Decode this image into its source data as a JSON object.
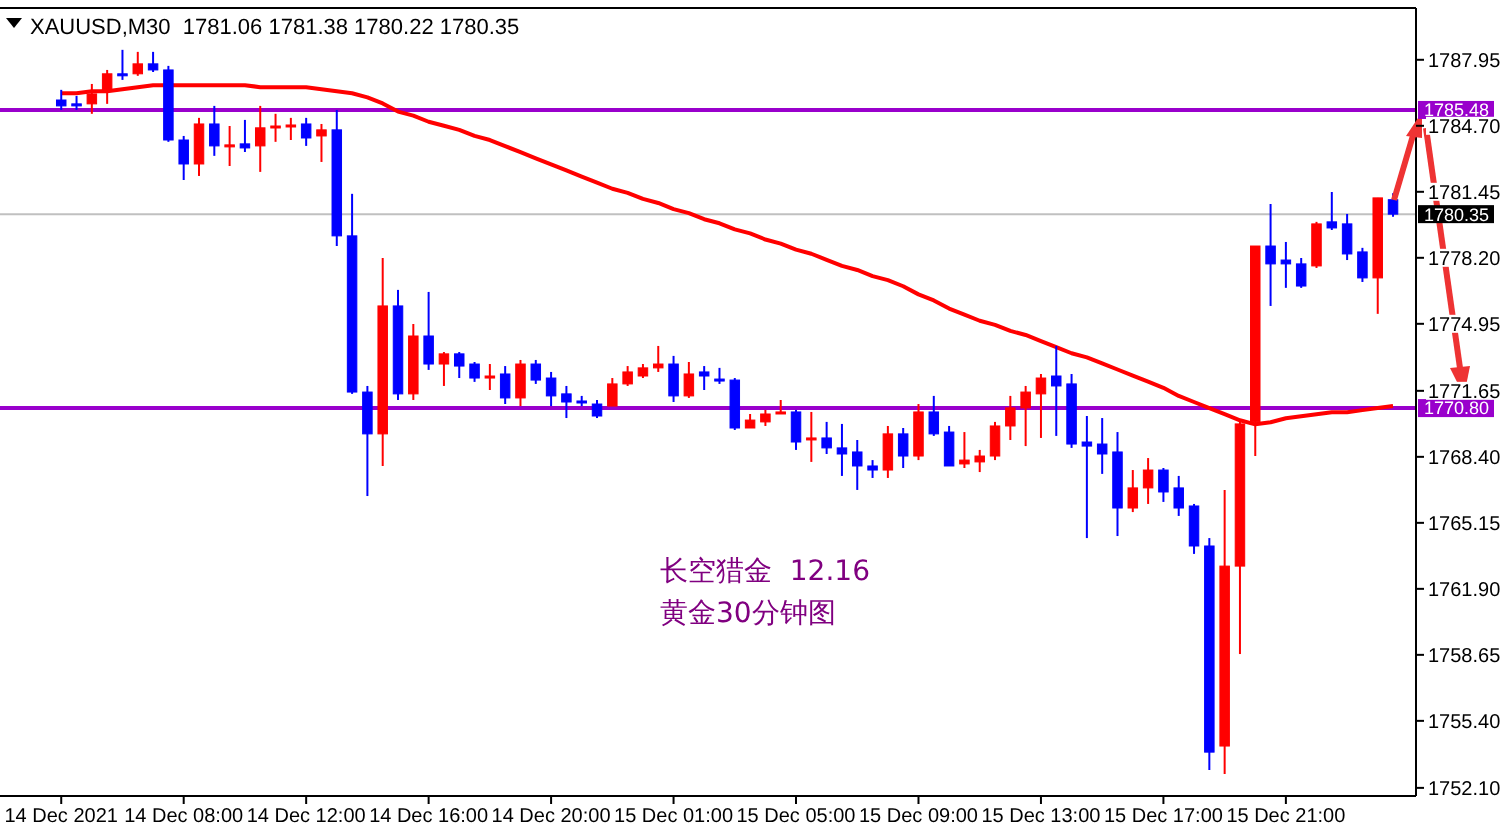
{
  "chart_data": {
    "type": "candlestick",
    "title": "XAUUSD,M30  1781.06 1781.38 1780.22 1780.35",
    "categories": [
      "14 Dec 2021",
      null,
      null,
      null,
      null,
      null,
      null,
      null,
      "14 Dec 08:00",
      null,
      null,
      null,
      null,
      null,
      null,
      null,
      "14 Dec 12:00",
      null,
      null,
      null,
      null,
      null,
      null,
      null,
      "14 Dec 16:00",
      null,
      null,
      null,
      null,
      null,
      null,
      null,
      "14 Dec 20:00",
      null,
      null,
      null,
      null,
      null,
      null,
      null,
      "15 Dec 01:00",
      null,
      null,
      null,
      null,
      null,
      null,
      null,
      "15 Dec 05:00",
      null,
      null,
      null,
      null,
      null,
      null,
      null,
      "15 Dec 09:00",
      null,
      null,
      null,
      null,
      null,
      null,
      null,
      "15 Dec 13:00",
      null,
      null,
      null,
      null,
      null,
      null,
      null,
      "15 Dec 17:00",
      null,
      null,
      null,
      null,
      null,
      null,
      null,
      "15 Dec 21:00",
      null,
      null,
      null,
      null,
      null,
      null,
      null
    ],
    "ohlc": [
      [
        1785.97,
        1786.47,
        1785.48,
        1785.68
      ],
      [
        1785.78,
        1786.17,
        1785.48,
        1785.68
      ],
      [
        1785.78,
        1786.76,
        1785.29,
        1786.27
      ],
      [
        1786.47,
        1787.45,
        1785.78,
        1787.26
      ],
      [
        1787.26,
        1788.44,
        1786.96,
        1787.21
      ],
      [
        1787.26,
        1788.34,
        1787.16,
        1787.75
      ],
      [
        1787.75,
        1788.34,
        1787.35,
        1787.45
      ],
      [
        1787.45,
        1787.65,
        1783.91,
        1784.0
      ],
      [
        1784.0,
        1784.2,
        1782.03,
        1782.82
      ],
      [
        1782.82,
        1785.09,
        1782.23,
        1784.79
      ],
      [
        1784.79,
        1785.68,
        1783.22,
        1783.71
      ],
      [
        1783.71,
        1784.69,
        1782.72,
        1783.76
      ],
      [
        1783.81,
        1784.99,
        1783.41,
        1783.61
      ],
      [
        1783.71,
        1785.68,
        1782.43,
        1784.6
      ],
      [
        1784.6,
        1785.29,
        1783.91,
        1784.69
      ],
      [
        1784.65,
        1785.09,
        1784.0,
        1784.74
      ],
      [
        1784.79,
        1785.09,
        1783.71,
        1784.1
      ],
      [
        1784.2,
        1784.79,
        1782.92,
        1784.5
      ],
      [
        1784.5,
        1785.48,
        1778.78,
        1779.28
      ],
      [
        1779.28,
        1781.35,
        1771.5,
        1771.59
      ],
      [
        1771.59,
        1771.89,
        1766.47,
        1769.53
      ],
      [
        1769.53,
        1778.19,
        1767.95,
        1775.83
      ],
      [
        1775.83,
        1776.62,
        1771.2,
        1771.5
      ],
      [
        1771.5,
        1774.94,
        1771.2,
        1774.35
      ],
      [
        1774.35,
        1776.52,
        1772.68,
        1772.97
      ],
      [
        1772.97,
        1773.56,
        1771.89,
        1773.47
      ],
      [
        1773.47,
        1773.56,
        1772.28,
        1772.87
      ],
      [
        1772.97,
        1773.07,
        1772.09,
        1772.28
      ],
      [
        1772.28,
        1772.97,
        1771.69,
        1772.38
      ],
      [
        1772.48,
        1772.87,
        1771.0,
        1771.3
      ],
      [
        1771.3,
        1773.17,
        1770.9,
        1772.97
      ],
      [
        1772.97,
        1773.17,
        1771.99,
        1772.18
      ],
      [
        1772.28,
        1772.58,
        1770.9,
        1771.4
      ],
      [
        1771.5,
        1771.89,
        1770.31,
        1771.1
      ],
      [
        1771.15,
        1771.4,
        1770.9,
        1771.1
      ],
      [
        1771.0,
        1771.2,
        1770.31,
        1770.41
      ],
      [
        1770.9,
        1772.28,
        1770.9,
        1771.99
      ],
      [
        1771.99,
        1772.87,
        1771.89,
        1772.58
      ],
      [
        1772.38,
        1772.97,
        1772.28,
        1772.78
      ],
      [
        1772.78,
        1773.86,
        1772.58,
        1772.97
      ],
      [
        1772.97,
        1773.37,
        1771.1,
        1771.4
      ],
      [
        1771.4,
        1773.07,
        1771.3,
        1772.48
      ],
      [
        1772.58,
        1772.87,
        1771.69,
        1772.38
      ],
      [
        1772.23,
        1772.78,
        1771.99,
        1772.18
      ],
      [
        1772.18,
        1772.28,
        1769.72,
        1769.82
      ],
      [
        1769.82,
        1770.51,
        1769.82,
        1770.21
      ],
      [
        1770.12,
        1770.71,
        1769.92,
        1770.51
      ],
      [
        1770.51,
        1771.2,
        1770.51,
        1770.61
      ],
      [
        1770.61,
        1770.71,
        1768.74,
        1769.13
      ],
      [
        1769.28,
        1770.61,
        1768.15,
        1769.33
      ],
      [
        1769.33,
        1770.12,
        1768.54,
        1768.84
      ],
      [
        1768.84,
        1770.02,
        1767.46,
        1768.54
      ],
      [
        1768.64,
        1769.23,
        1766.77,
        1767.95
      ],
      [
        1767.95,
        1768.24,
        1767.36,
        1767.75
      ],
      [
        1767.75,
        1769.92,
        1767.36,
        1769.53
      ],
      [
        1769.53,
        1769.82,
        1767.85,
        1768.44
      ],
      [
        1768.44,
        1771.0,
        1768.24,
        1770.61
      ],
      [
        1770.61,
        1771.4,
        1769.43,
        1769.53
      ],
      [
        1769.62,
        1769.92,
        1767.95,
        1767.95
      ],
      [
        1768.05,
        1769.62,
        1767.85,
        1768.24
      ],
      [
        1768.15,
        1768.74,
        1767.65,
        1768.44
      ],
      [
        1768.44,
        1770.12,
        1768.24,
        1769.92
      ],
      [
        1769.92,
        1771.4,
        1769.23,
        1770.81
      ],
      [
        1770.81,
        1771.89,
        1768.93,
        1771.59
      ],
      [
        1771.5,
        1772.48,
        1769.33,
        1772.28
      ],
      [
        1772.38,
        1773.86,
        1769.43,
        1771.89
      ],
      [
        1771.99,
        1772.48,
        1768.84,
        1769.03
      ],
      [
        1769.13,
        1770.41,
        1764.4,
        1768.93
      ],
      [
        1769.03,
        1770.31,
        1767.56,
        1768.54
      ],
      [
        1768.64,
        1769.62,
        1764.5,
        1765.88
      ],
      [
        1765.88,
        1767.75,
        1765.68,
        1766.87
      ],
      [
        1766.87,
        1768.34,
        1766.08,
        1767.75
      ],
      [
        1767.75,
        1767.85,
        1766.18,
        1766.67
      ],
      [
        1766.87,
        1767.46,
        1765.49,
        1765.88
      ],
      [
        1765.98,
        1766.08,
        1763.62,
        1764.01
      ],
      [
        1764.01,
        1764.4,
        1752.98,
        1753.86
      ],
      [
        1754.16,
        1766.77,
        1752.78,
        1763.02
      ],
      [
        1763.02,
        1770.21,
        1758.69,
        1770.02
      ],
      [
        1770.12,
        1778.78,
        1768.44,
        1778.78
      ],
      [
        1778.78,
        1780.85,
        1775.83,
        1777.9
      ],
      [
        1778.09,
        1778.98,
        1776.72,
        1777.9
      ],
      [
        1777.9,
        1778.19,
        1776.72,
        1776.81
      ],
      [
        1777.8,
        1779.97,
        1777.7,
        1779.87
      ],
      [
        1779.97,
        1781.44,
        1779.57,
        1779.67
      ],
      [
        1779.87,
        1780.36,
        1778.09,
        1778.39
      ],
      [
        1778.49,
        1778.69,
        1777.01,
        1777.21
      ],
      [
        1777.21,
        1781.15,
        1775.44,
        1781.15
      ],
      [
        1781.06,
        1781.38,
        1780.22,
        1780.35
      ]
    ],
    "colors": [
      "#0000ff",
      "#0000ff",
      "#ff0000",
      "#ff0000",
      "#0000ff",
      "#ff0000",
      "#0000ff",
      "#0000ff",
      "#0000ff",
      "#ff0000",
      "#0000ff",
      "#ff0000",
      "#0000ff",
      "#ff0000",
      "#ff0000",
      "#ff0000",
      "#0000ff",
      "#ff0000",
      "#0000ff",
      "#0000ff",
      "#0000ff",
      "#ff0000",
      "#0000ff",
      "#ff0000",
      "#0000ff",
      "#ff0000",
      "#0000ff",
      "#0000ff",
      "#ff0000",
      "#0000ff",
      "#ff0000",
      "#0000ff",
      "#0000ff",
      "#0000ff",
      "#0000ff",
      "#0000ff",
      "#ff0000",
      "#ff0000",
      "#ff0000",
      "#ff0000",
      "#0000ff",
      "#ff0000",
      "#0000ff",
      "#0000ff",
      "#0000ff",
      "#ff0000",
      "#ff0000",
      "#ff0000",
      "#0000ff",
      "#ff0000",
      "#0000ff",
      "#0000ff",
      "#0000ff",
      "#0000ff",
      "#ff0000",
      "#0000ff",
      "#ff0000",
      "#0000ff",
      "#0000ff",
      "#ff0000",
      "#ff0000",
      "#ff0000",
      "#ff0000",
      "#ff0000",
      "#ff0000",
      "#0000ff",
      "#0000ff",
      "#0000ff",
      "#0000ff",
      "#0000ff",
      "#ff0000",
      "#ff0000",
      "#0000ff",
      "#0000ff",
      "#0000ff",
      "#0000ff",
      "#ff0000",
      "#ff0000",
      "#ff0000",
      "#0000ff",
      "#0000ff",
      "#0000ff",
      "#ff0000",
      "#0000ff",
      "#0000ff",
      "#0000ff",
      "#ff0000",
      "#0000ff"
    ],
    "series": [
      {
        "type": "line",
        "color": "#ff0000",
        "values": [
          1786.3,
          1786.3,
          1786.4,
          1786.4,
          1786.5,
          1786.6,
          1786.7,
          1786.7,
          1786.7,
          1786.7,
          1786.7,
          1786.7,
          1786.7,
          1786.6,
          1786.6,
          1786.6,
          1786.6,
          1786.5,
          1786.4,
          1786.3,
          1786.1,
          1785.8,
          1785.4,
          1785.2,
          1784.9,
          1784.7,
          1784.5,
          1784.2,
          1784.0,
          1783.7,
          1783.4,
          1783.1,
          1782.8,
          1782.5,
          1782.2,
          1781.9,
          1781.6,
          1781.4,
          1781.1,
          1780.9,
          1780.6,
          1780.4,
          1780.1,
          1779.9,
          1779.6,
          1779.4,
          1779.1,
          1778.9,
          1778.6,
          1778.4,
          1778.1,
          1777.8,
          1777.6,
          1777.3,
          1777.1,
          1776.8,
          1776.4,
          1776.1,
          1775.7,
          1775.4,
          1775.1,
          1774.9,
          1774.6,
          1774.4,
          1774.1,
          1773.8,
          1773.5,
          1773.3,
          1773.0,
          1772.7,
          1772.4,
          1772.1,
          1771.8,
          1771.4,
          1771.1,
          1770.8,
          1770.5,
          1770.2,
          1770.0,
          1770.1,
          1770.3,
          1770.4,
          1770.5,
          1770.6,
          1770.6,
          1770.7,
          1770.8,
          1770.9
        ]
      }
    ],
    "ylim": [
      1751.7,
      1790.5
    ],
    "yticks": [
      1787.95,
      {
        "value": 1784.7,
        "label": "1784.70"
      },
      1781.45,
      {
        "value": 1778.2,
        "label": "1778.20"
      },
      1774.95,
      1771.65,
      {
        "value": 1768.4,
        "label": "1768.40"
      },
      1765.15,
      {
        "value": 1761.9,
        "label": "1761.90"
      },
      1758.65,
      {
        "value": 1755.4,
        "label": "1755.40"
      },
      {
        "value": 1752.1,
        "label": "1752.10"
      }
    ],
    "ref_lines": [
      {
        "axis": "y",
        "value": 1785.48,
        "label": "1785.48",
        "color": "#9900cc"
      },
      {
        "axis": "y",
        "value": 1770.8,
        "label": "1770.80",
        "color": "#9900cc"
      },
      {
        "axis": "y",
        "value": 1780.35,
        "label": "1780.35",
        "color": "#c0c0c0"
      }
    ],
    "annotations": [
      "长空猎金  12.16",
      "黄金30分钟图"
    ]
  }
}
